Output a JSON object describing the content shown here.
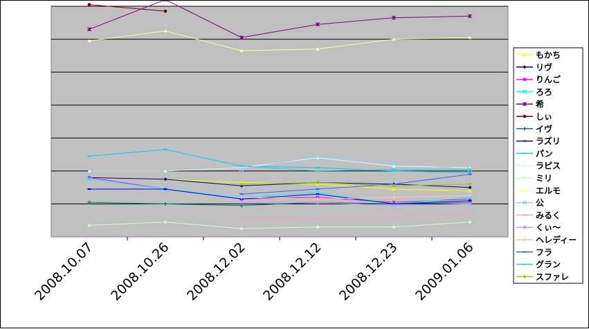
{
  "chart_data": {
    "type": "line",
    "title": "",
    "xlabel": "",
    "ylabel": "",
    "grid": true,
    "legend_position": "right",
    "plot_background": "#c0c0c0",
    "categories": [
      "2008.10.07",
      "2008.10.26",
      "2008.12.02",
      "2008.12.12",
      "2008.12.23",
      "2009.01.06"
    ],
    "ylim": [
      0,
      7
    ],
    "series": [
      {
        "name": "もかち",
        "color": "#ffff00",
        "marker": "triangle",
        "values": [
          1.8,
          1.75,
          1.65,
          1.6,
          1.45,
          1.4
        ]
      },
      {
        "name": "リヴ",
        "color": "#000080",
        "marker": "diamond",
        "values": [
          1.8,
          1.75,
          1.55,
          1.65,
          1.6,
          1.5
        ]
      },
      {
        "name": "りんご",
        "color": "#ff00ff",
        "marker": "square",
        "values": [
          1.8,
          1.45,
          1.15,
          1.2,
          1.05,
          1.15
        ]
      },
      {
        "name": "ろろ",
        "color": "#00ffff",
        "marker": "x",
        "values": [
          1.75,
          1.45,
          1.2,
          1.35,
          1.0,
          1.2
        ]
      },
      {
        "name": "希",
        "color": "#800080",
        "marker": "star",
        "values": [
          6.3,
          7.2,
          6.05,
          6.45,
          6.65,
          6.7
        ]
      },
      {
        "name": "しぃ",
        "color": "#800000",
        "marker": "circle",
        "values": [
          7.05,
          6.85,
          null,
          null,
          null,
          null
        ]
      },
      {
        "name": "イヴ",
        "color": "#008080",
        "marker": "plus",
        "values": [
          1.05,
          1.0,
          0.95,
          1.05,
          1.0,
          1.05
        ]
      },
      {
        "name": "ラズリ",
        "color": "#0000ff",
        "marker": "dash",
        "values": [
          1.45,
          1.45,
          1.15,
          1.3,
          1.0,
          1.1
        ]
      },
      {
        "name": "パン",
        "color": "#00ccff",
        "marker": "dash",
        "values": [
          2.45,
          2.65,
          2.15,
          2.1,
          2.0,
          1.95
        ]
      },
      {
        "name": "ラピス",
        "color": "#ccffff",
        "marker": "triangle",
        "values": [
          2.0,
          2.0,
          2.1,
          2.4,
          2.15,
          2.1
        ]
      },
      {
        "name": "ミリ",
        "color": "#ccffcc",
        "marker": "diamond",
        "values": [
          0.35,
          0.45,
          0.25,
          0.3,
          0.3,
          0.45
        ]
      },
      {
        "name": "エルモ",
        "color": "#ffff99",
        "marker": "triangle",
        "values": [
          5.95,
          6.25,
          5.65,
          5.7,
          6.0,
          6.05
        ]
      },
      {
        "name": "公",
        "color": "#99ccff",
        "marker": "x",
        "values": [
          null,
          null,
          2.05,
          2.45,
          2.25,
          2.05
        ]
      },
      {
        "name": "みるく",
        "color": "#ff99cc",
        "marker": "dash",
        "values": [
          null,
          null,
          0.55,
          0.55,
          0.6,
          0.75
        ]
      },
      {
        "name": "くぃ～",
        "color": "#cc99ff",
        "marker": "square",
        "values": [
          null,
          null,
          1.05,
          1.05,
          0.95,
          1.0
        ]
      },
      {
        "name": "ヘレディー",
        "color": "#ffcc99",
        "marker": "plus",
        "values": [
          null,
          null,
          1.2,
          1.15,
          1.2,
          1.25
        ]
      },
      {
        "name": "フラ",
        "color": "#3366ff",
        "marker": "dash",
        "values": [
          null,
          null,
          1.3,
          1.45,
          1.6,
          1.9
        ]
      },
      {
        "name": "グラン",
        "color": "#33cccc",
        "marker": "dash",
        "values": [
          null,
          null,
          2.15,
          2.0,
          2.05,
          2.05
        ]
      },
      {
        "name": "スファレ",
        "color": "#99cc00",
        "marker": "diamond",
        "values": [
          null,
          null,
          1.6,
          1.65,
          1.55,
          1.6
        ]
      }
    ]
  }
}
